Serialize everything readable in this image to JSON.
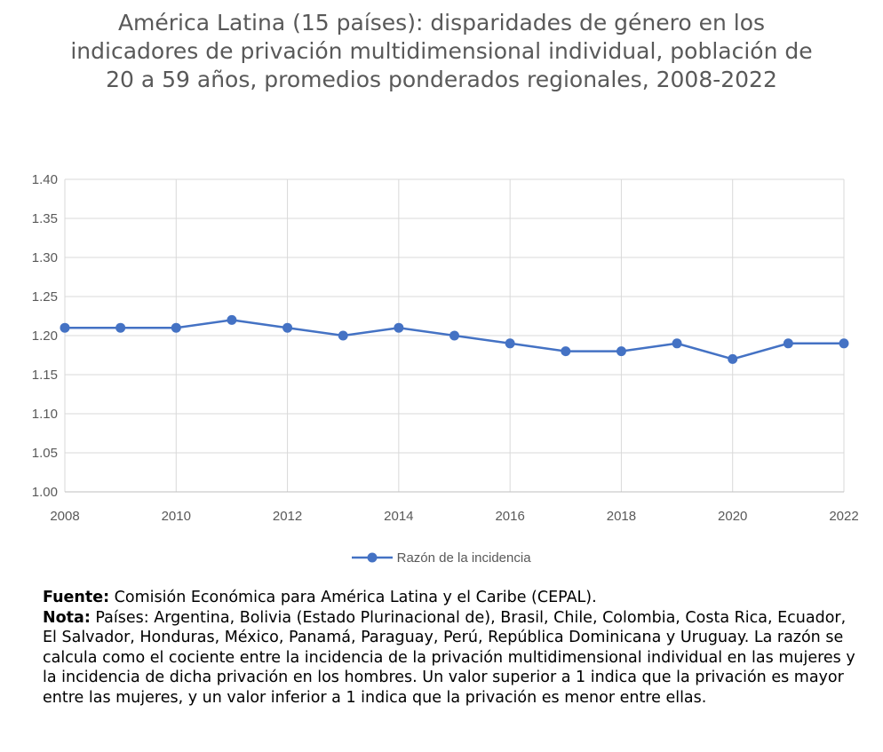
{
  "chart_data": {
    "type": "line",
    "title": "América Latina (15 países): disparidades de género en los indicadores de privación multidimensional individual, población de 20 a 59 años, promedios ponderados regionales, 2008-2022",
    "x": [
      2008,
      2009,
      2010,
      2011,
      2012,
      2013,
      2014,
      2015,
      2016,
      2017,
      2018,
      2019,
      2020,
      2021,
      2022
    ],
    "series": [
      {
        "name": "Razón de la incidencia",
        "values": [
          1.21,
          1.21,
          1.21,
          1.22,
          1.21,
          1.2,
          1.21,
          1.2,
          1.19,
          1.18,
          1.18,
          1.19,
          1.17,
          1.19,
          1.19
        ],
        "color": "#4472C4"
      }
    ],
    "xlim": [
      2008,
      2022
    ],
    "ylim": [
      1.0,
      1.4
    ],
    "x_ticks": [
      "2008",
      "2010",
      "2012",
      "2014",
      "2016",
      "2018",
      "2020",
      "2022"
    ],
    "y_ticks": [
      "1.00",
      "1.05",
      "1.10",
      "1.15",
      "1.20",
      "1.25",
      "1.30",
      "1.35",
      "1.40"
    ],
    "grid": true,
    "legend_position": "bottom",
    "xlabel": "",
    "ylabel": ""
  },
  "notes": {
    "source_label": "Fuente:",
    "source_text": " Comisión Económica para América Latina y el Caribe (CEPAL).",
    "note_label": "Nota:",
    "note_text": " Países: Argentina, Bolivia (Estado Plurinacional de), Brasil, Chile, Colombia, Costa Rica, Ecuador, El Salvador, Honduras, México, Panamá, Paraguay, Perú, República Dominicana y Uruguay. La razón se calcula como el cociente entre la incidencia de la privación multidimensional individual en las mujeres y la incidencia de dicha privación en los hombres. Un valor superior a 1 indica que la privación es mayor entre las mujeres, y un valor inferior a 1 indica que la privación es menor entre ellas."
  }
}
